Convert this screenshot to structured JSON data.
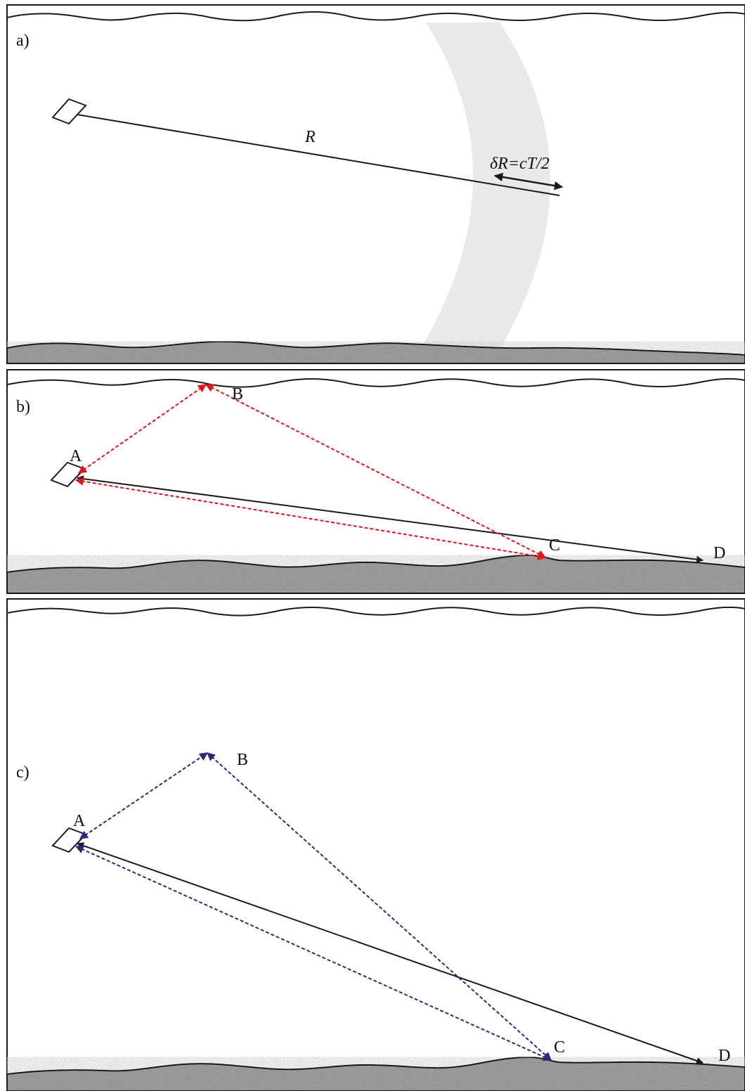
{
  "colors": {
    "ink": "#1a1a1a",
    "shell": "#e8e9e8",
    "seabed": "#a6a6a6",
    "multipath_b": "#e0141b",
    "multipath_c": "#2b2a7a"
  },
  "panels": [
    {
      "id": "a",
      "label": "a)",
      "range_label": "R",
      "resolution_label": "δR=cT/2"
    },
    {
      "id": "b",
      "label": "b)",
      "points": {
        "A": "A",
        "B": "B",
        "C": "C",
        "D": "D"
      }
    },
    {
      "id": "c",
      "label": "c)",
      "points": {
        "A": "A",
        "B": "B",
        "C": "C",
        "D": "D"
      }
    }
  ]
}
